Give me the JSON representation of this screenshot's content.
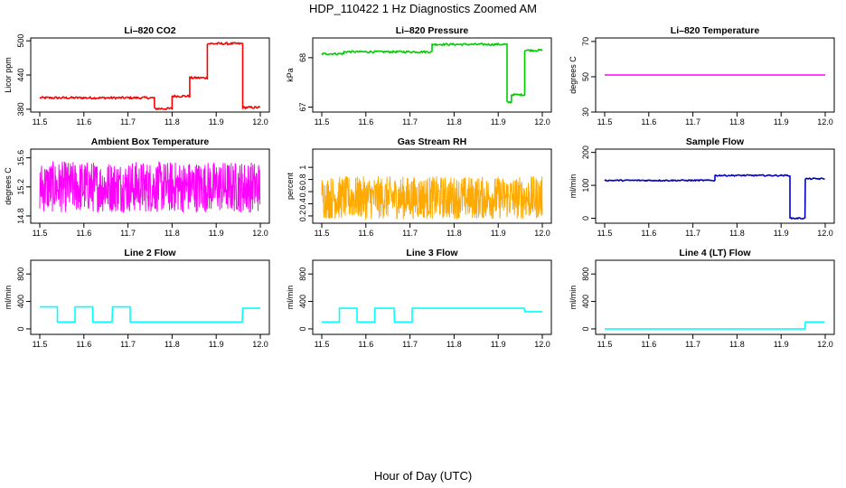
{
  "figure": {
    "title": "HDP_110422  1 Hz Diagnostics Zoomed AM",
    "xlabel": "Hour of Day (UTC)"
  },
  "chart_data": [
    {
      "type": "line",
      "title": "Li–820 CO2",
      "ylabel": "Licor ppm",
      "color": "#ff0000",
      "xlim": [
        11.5,
        12.0
      ],
      "ylim": [
        375,
        505
      ],
      "xticks": [
        "11.5",
        "11.6",
        "11.7",
        "11.8",
        "11.9",
        "12.0"
      ],
      "yticks": [
        380,
        440,
        500
      ],
      "series": [
        {
          "name": "CO2",
          "segments": [
            [
              11.5,
              11.76,
              400
            ],
            [
              11.76,
              11.8,
              381
            ],
            [
              11.8,
              11.84,
              403
            ],
            [
              11.84,
              11.88,
              435
            ],
            [
              11.88,
              11.96,
              495
            ],
            [
              11.96,
              12.0,
              383
            ]
          ],
          "noise": 2
        }
      ]
    },
    {
      "type": "line",
      "title": "Li–820 Pressure",
      "ylabel": "kPa",
      "color": "#00cc00",
      "xlim": [
        11.5,
        12.0
      ],
      "ylim": [
        66.9,
        68.4
      ],
      "xticks": [
        "11.5",
        "11.6",
        "11.7",
        "11.8",
        "11.9",
        "12.0"
      ],
      "yticks": [
        67.0,
        68.0
      ],
      "series": [
        {
          "name": "Pressure",
          "segments": [
            [
              11.5,
              11.55,
              68.08
            ],
            [
              11.55,
              11.75,
              68.12
            ],
            [
              11.75,
              11.92,
              68.27
            ],
            [
              11.92,
              11.93,
              67.1
            ],
            [
              11.93,
              11.96,
              67.25
            ],
            [
              11.96,
              12.0,
              68.15
            ]
          ],
          "noise": 0.02
        }
      ]
    },
    {
      "type": "line",
      "title": "Li–820 Temperature",
      "ylabel": "degrees C",
      "color": "#ff00ff",
      "xlim": [
        11.5,
        12.0
      ],
      "ylim": [
        30,
        72
      ],
      "xticks": [
        "11.5",
        "11.6",
        "11.7",
        "11.8",
        "11.9",
        "12.0"
      ],
      "yticks": [
        30,
        50,
        70
      ],
      "series": [
        {
          "name": "Temperature",
          "segments": [
            [
              11.5,
              12.0,
              51
            ]
          ],
          "noise": 0
        }
      ]
    },
    {
      "type": "line",
      "title": "Ambient Box Temperature",
      "ylabel": "degrees C",
      "color": "#ff00ff",
      "xlim": [
        11.5,
        12.0
      ],
      "ylim": [
        14.7,
        15.72
      ],
      "xticks": [
        "11.5",
        "11.6",
        "11.7",
        "11.8",
        "11.9",
        "12.0"
      ],
      "yticks": [
        14.8,
        15.2,
        15.6
      ],
      "series": [
        {
          "name": "Box Temp",
          "segments": [
            [
              11.5,
              12.0,
              15.2
            ]
          ],
          "noise": 0.35,
          "dense": true
        }
      ]
    },
    {
      "type": "line",
      "title": "Gas Stream RH",
      "ylabel": "percent",
      "color": "#ffaa00",
      "xlim": [
        11.5,
        12.0
      ],
      "ylim": [
        0.08,
        1.3
      ],
      "xticks": [
        "11.5",
        "11.6",
        "11.7",
        "11.8",
        "11.9",
        "12.0"
      ],
      "yticks": [
        0.2,
        0.4,
        0.6,
        0.8,
        1.0
      ],
      "series": [
        {
          "name": "RH",
          "segments": [
            [
              11.5,
              12.0,
              0.5
            ]
          ],
          "noise": 0.35,
          "dense": true
        }
      ]
    },
    {
      "type": "line",
      "title": "Sample Flow",
      "ylabel": "ml/min",
      "color": "#0000cc",
      "xlim": [
        11.5,
        12.0
      ],
      "ylim": [
        -15,
        210
      ],
      "xticks": [
        "11.5",
        "11.6",
        "11.7",
        "11.8",
        "11.9",
        "12.0"
      ],
      "yticks": [
        0,
        100,
        200
      ],
      "series": [
        {
          "name": "Sample Flow",
          "segments": [
            [
              11.5,
              11.75,
              115
            ],
            [
              11.75,
              11.92,
              130
            ],
            [
              11.92,
              11.955,
              0
            ],
            [
              11.955,
              12.0,
              120
            ]
          ],
          "noise": 2
        }
      ]
    },
    {
      "type": "line",
      "title": "Line 2 Flow",
      "ylabel": "ml/min",
      "color": "#00ffff",
      "xlim": [
        11.5,
        12.0
      ],
      "ylim": [
        -80,
        1000
      ],
      "xticks": [
        "11.5",
        "11.6",
        "11.7",
        "11.8",
        "11.9",
        "12.0"
      ],
      "yticks": [
        0,
        400,
        800
      ],
      "series": [
        {
          "name": "Line 2",
          "segments": [
            [
              11.5,
              11.54,
              320
            ],
            [
              11.54,
              11.58,
              100
            ],
            [
              11.58,
              11.62,
              320
            ],
            [
              11.62,
              11.665,
              100
            ],
            [
              11.665,
              11.705,
              320
            ],
            [
              11.705,
              11.96,
              100
            ],
            [
              11.96,
              12.0,
              300
            ]
          ],
          "noise": 0
        }
      ]
    },
    {
      "type": "line",
      "title": "Line 3 Flow",
      "ylabel": "ml/min",
      "color": "#00ffff",
      "xlim": [
        11.5,
        12.0
      ],
      "ylim": [
        -80,
        1000
      ],
      "xticks": [
        "11.5",
        "11.6",
        "11.7",
        "11.8",
        "11.9",
        "12.0"
      ],
      "yticks": [
        0,
        400,
        800
      ],
      "series": [
        {
          "name": "Line 3",
          "segments": [
            [
              11.5,
              11.54,
              100
            ],
            [
              11.54,
              11.58,
              300
            ],
            [
              11.58,
              11.62,
              100
            ],
            [
              11.62,
              11.665,
              300
            ],
            [
              11.665,
              11.705,
              100
            ],
            [
              11.705,
              11.96,
              300
            ],
            [
              11.96,
              12.0,
              250
            ]
          ],
          "noise": 0
        }
      ]
    },
    {
      "type": "line",
      "title": "Line 4 (LT) Flow",
      "ylabel": "ml/min",
      "color": "#00ffff",
      "xlim": [
        11.5,
        12.0
      ],
      "ylim": [
        -80,
        1000
      ],
      "xticks": [
        "11.5",
        "11.6",
        "11.7",
        "11.8",
        "11.9",
        "12.0"
      ],
      "yticks": [
        0,
        400,
        800
      ],
      "series": [
        {
          "name": "Line 4",
          "segments": [
            [
              11.5,
              11.955,
              0
            ],
            [
              11.955,
              12.0,
              100
            ]
          ],
          "noise": 0
        }
      ]
    }
  ]
}
